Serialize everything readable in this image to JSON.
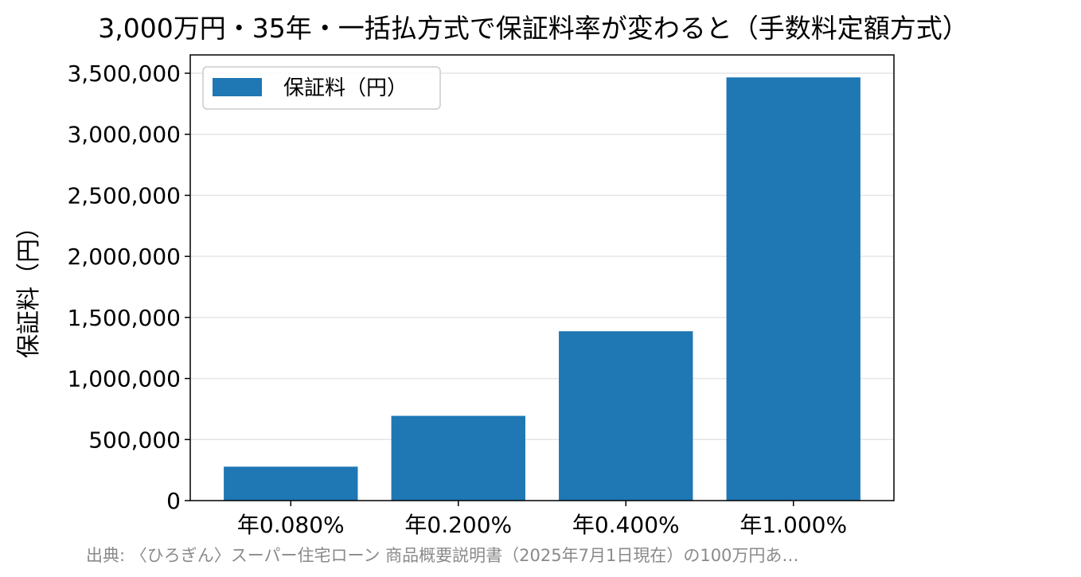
{
  "chart_data": {
    "type": "bar",
    "title": "3,000万円・35年・一括払方式で保証料率が変わると（手数料定額方式）",
    "xlabel": "",
    "ylabel": "保証料（円）",
    "categories": [
      "年0.080%",
      "年0.200%",
      "年0.400%",
      "年1.000%"
    ],
    "series": [
      {
        "name": "保証料（円）",
        "values": [
          278000,
          694000,
          1387000,
          3466000
        ]
      }
    ],
    "ylim": [
      0,
      3650000
    ],
    "yticks": [
      0,
      500000,
      1000000,
      1500000,
      2000000,
      2500000,
      3000000,
      3500000
    ],
    "ytick_labels": [
      "0",
      "500,000",
      "1,000,000",
      "1,500,000",
      "2,000,000",
      "2,500,000",
      "3,000,000",
      "3,500,000"
    ],
    "grid": "horizontal",
    "legend_position": "top-left",
    "source": "出典: 〈ひろぎん〉スーパー住宅ローン 商品概要説明書（2025年7月1日現在）の100万円あ…",
    "colors": {
      "bar": "#1f77b4",
      "grid": "#e6e6e6",
      "axis": "#000000",
      "source": "#8a8a8a"
    }
  }
}
